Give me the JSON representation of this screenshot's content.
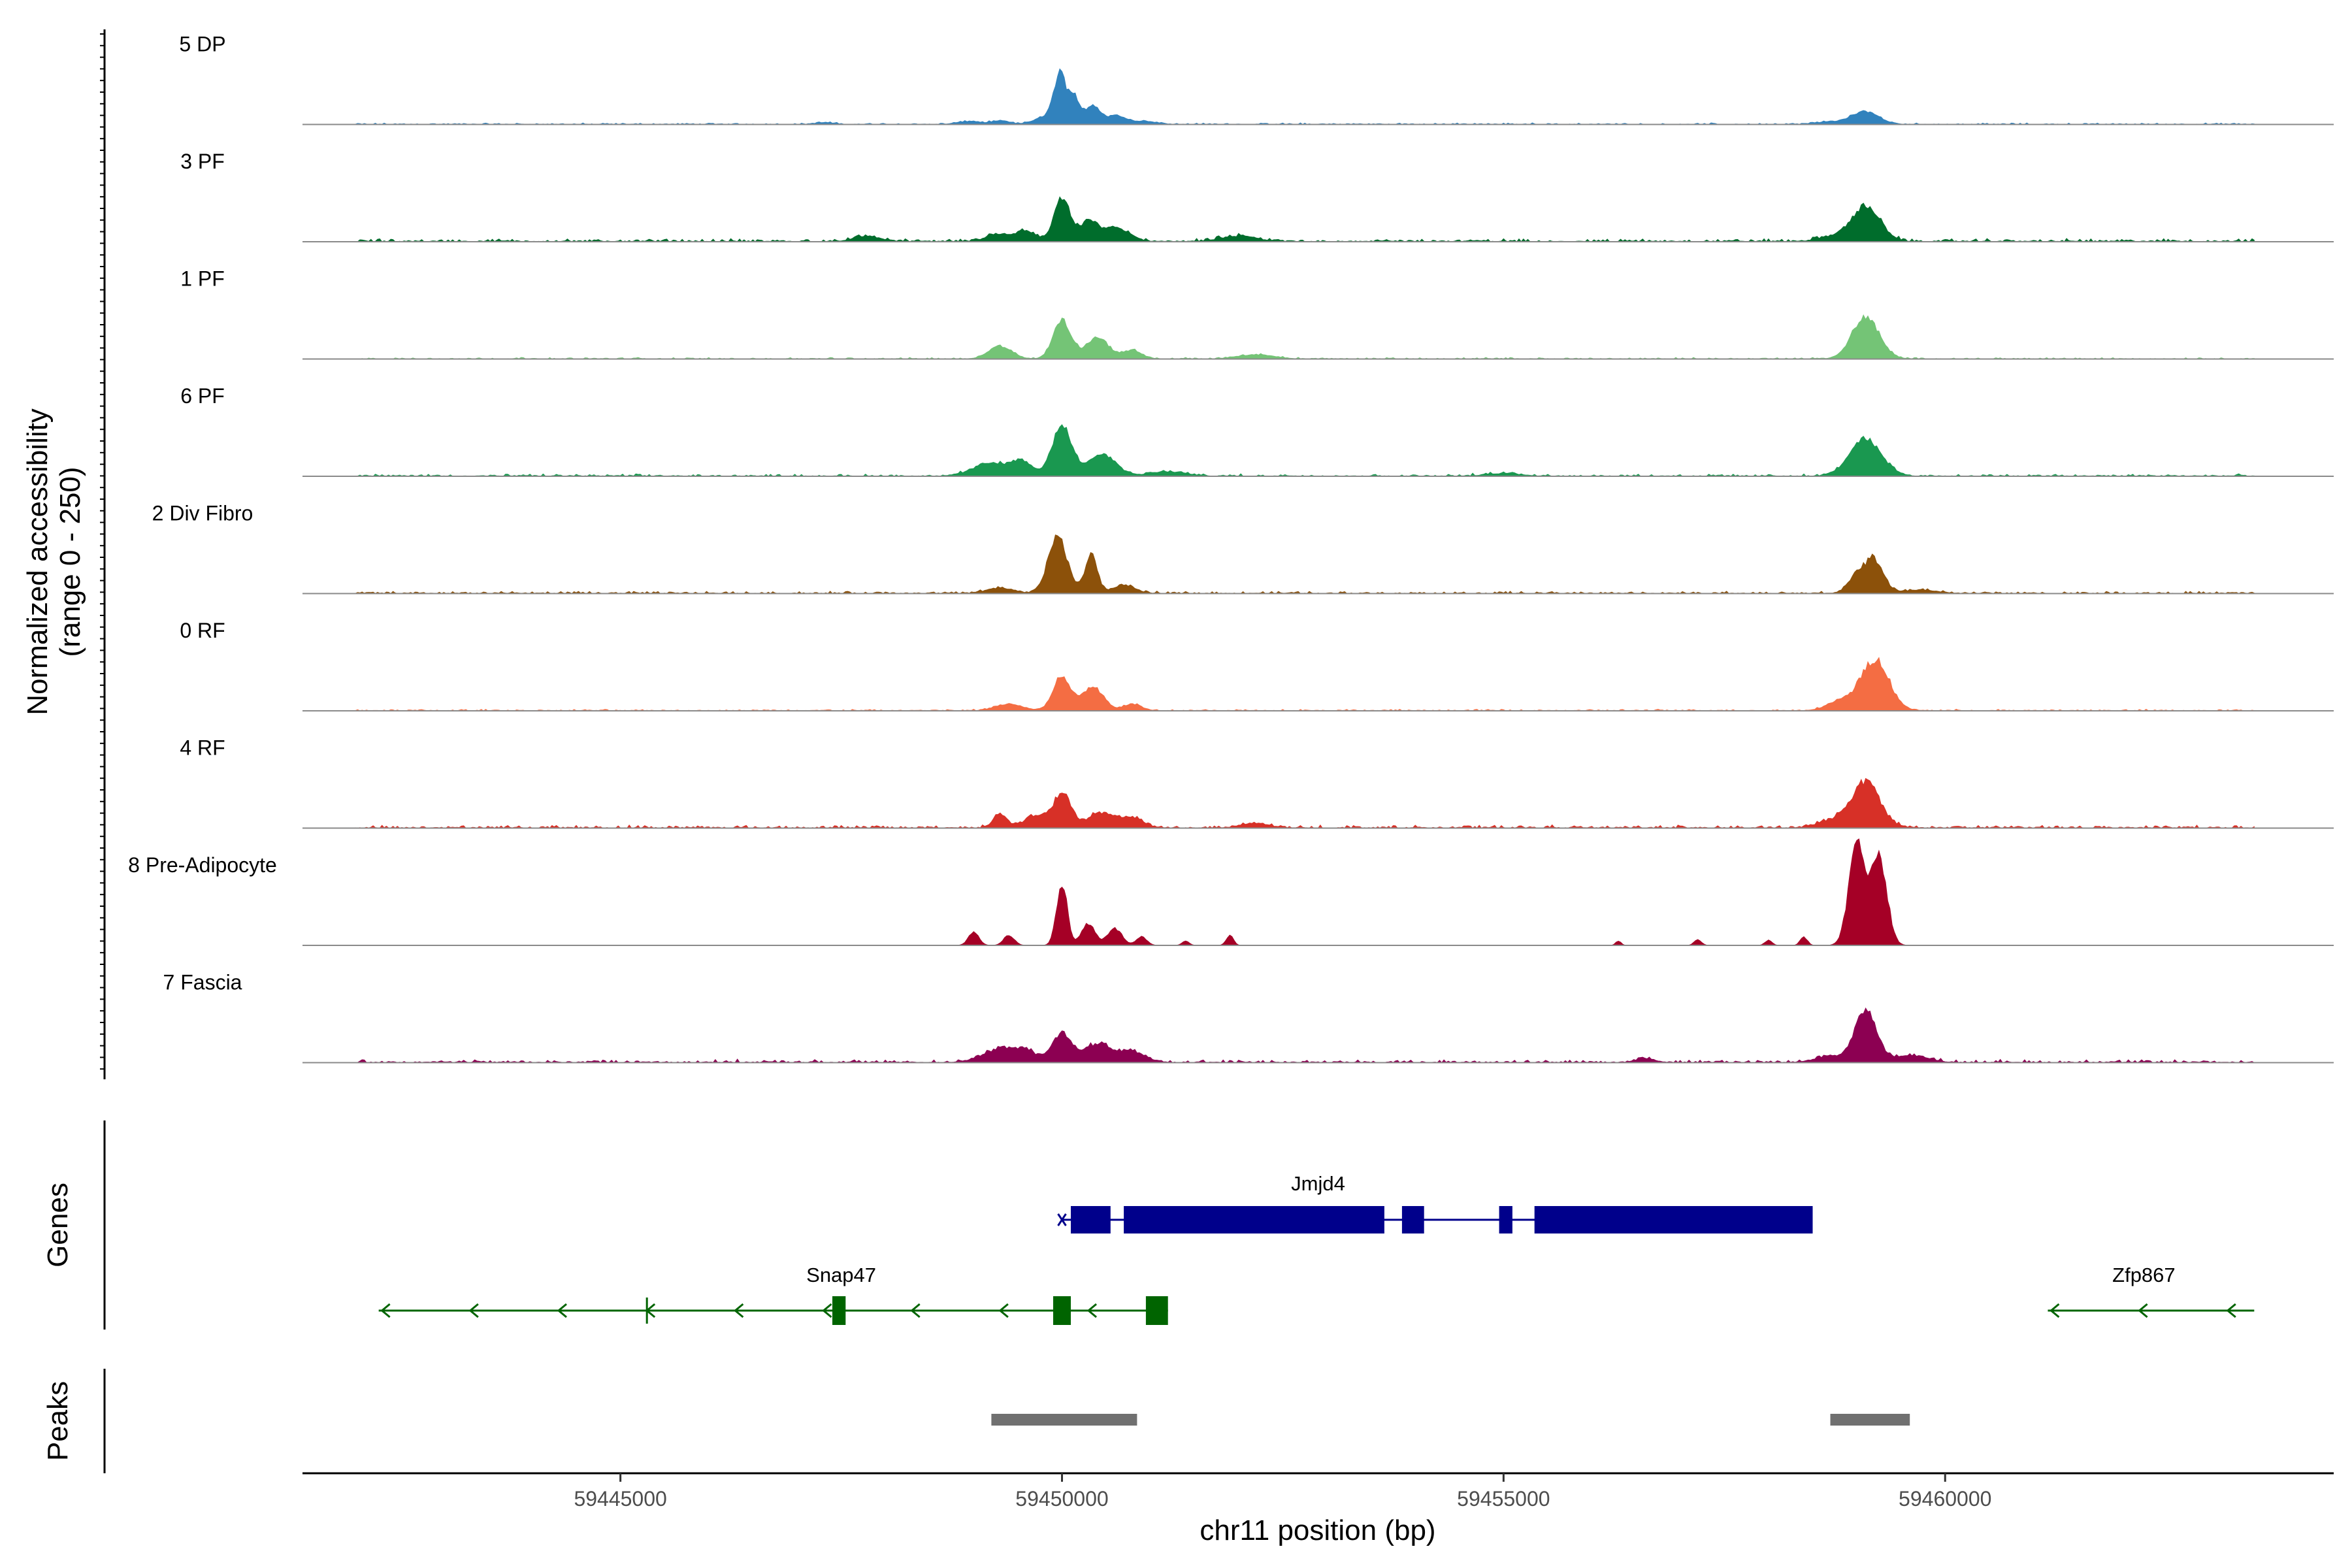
{
  "chart_data": {
    "type": "area",
    "title": "",
    "xlabel": "chr11 position (bp)",
    "ylabel_line1": "Normalized accessibility",
    "ylabel_line2": "(range 0 - 250)",
    "xlim": [
      59441400,
      59464400
    ],
    "ylim": [
      0,
      250
    ],
    "x_ticks": [
      59445000,
      59450000,
      59455000,
      59460000
    ],
    "tick_labels": [
      "59445000",
      "59450000",
      "59455000",
      "59460000"
    ],
    "tracks": [
      {
        "name": "5 DP",
        "color": "#3182bd",
        "noise": 2,
        "peaks": [
          [
            59447300,
            2,
            100
          ],
          [
            59448900,
            2,
            120
          ],
          [
            59449000,
            2,
            100
          ],
          [
            59449300,
            4,
            100
          ],
          [
            59449800,
            8,
            120
          ],
          [
            59449980,
            60,
            70
          ],
          [
            59450150,
            30,
            60
          ],
          [
            59450350,
            22,
            80
          ],
          [
            59450600,
            10,
            100
          ],
          [
            59450900,
            4,
            150
          ],
          [
            59458700,
            3,
            150
          ],
          [
            59459100,
            15,
            150
          ]
        ]
      },
      {
        "name": "3 PF",
        "color": "#006d2c",
        "noise": 4,
        "peaks": [
          [
            59447800,
            6,
            150
          ],
          [
            59449300,
            8,
            150
          ],
          [
            59449600,
            12,
            100
          ],
          [
            59450000,
            50,
            90
          ],
          [
            59450300,
            22,
            100
          ],
          [
            59450600,
            16,
            150
          ],
          [
            59452000,
            6,
            200
          ],
          [
            59458700,
            5,
            150
          ],
          [
            59459100,
            42,
            160
          ]
        ]
      },
      {
        "name": "1 PF",
        "color": "#74c476",
        "noise": 2,
        "peaks": [
          [
            59449300,
            15,
            130
          ],
          [
            59450000,
            45,
            100
          ],
          [
            59450400,
            25,
            130
          ],
          [
            59450800,
            10,
            100
          ],
          [
            59452200,
            5,
            200
          ],
          [
            59459100,
            50,
            150
          ]
        ]
      },
      {
        "name": "6 PF",
        "color": "#1a9850",
        "noise": 3,
        "peaks": [
          [
            59449200,
            15,
            200
          ],
          [
            59449550,
            15,
            120
          ],
          [
            59450000,
            60,
            110
          ],
          [
            59450450,
            25,
            160
          ],
          [
            59451200,
            5,
            200
          ],
          [
            59455000,
            3,
            200
          ],
          [
            59459100,
            43,
            180
          ]
        ]
      },
      {
        "name": "2 Div Fibro",
        "color": "#8c510a",
        "noise": 3,
        "peaks": [
          [
            59449300,
            6,
            150
          ],
          [
            59449950,
            65,
            110
          ],
          [
            59450330,
            45,
            70
          ],
          [
            59450700,
            10,
            120
          ],
          [
            59459000,
            20,
            100
          ],
          [
            59459200,
            38,
            100
          ],
          [
            59459700,
            4,
            200
          ]
        ]
      },
      {
        "name": "0 RF",
        "color": "#f46d43",
        "noise": 2,
        "peaks": [
          [
            59449400,
            8,
            150
          ],
          [
            59450000,
            40,
            100
          ],
          [
            59450350,
            28,
            120
          ],
          [
            59450800,
            8,
            100
          ],
          [
            59458800,
            10,
            150
          ],
          [
            59459200,
            60,
            160
          ]
        ]
      },
      {
        "name": "4 RF",
        "color": "#d73027",
        "noise": 4,
        "peaks": [
          [
            59449300,
            16,
            80
          ],
          [
            59449700,
            14,
            120
          ],
          [
            59450000,
            40,
            100
          ],
          [
            59450450,
            18,
            150
          ],
          [
            59450800,
            12,
            120
          ],
          [
            59452200,
            5,
            150
          ],
          [
            59458700,
            8,
            150
          ],
          [
            59459100,
            55,
            160
          ]
        ]
      },
      {
        "name": "8 Pre-Adipocyte",
        "color": "#a50026",
        "noise": 0,
        "peaks": [
          [
            59449000,
            15,
            60
          ],
          [
            59449400,
            12,
            60
          ],
          [
            59450000,
            75,
            60
          ],
          [
            59450300,
            25,
            80
          ],
          [
            59450600,
            20,
            80
          ],
          [
            59450900,
            10,
            60
          ],
          [
            59451400,
            5,
            40
          ],
          [
            59451900,
            12,
            40
          ],
          [
            59456300,
            5,
            30
          ],
          [
            59457200,
            7,
            40
          ],
          [
            59458000,
            6,
            40
          ],
          [
            59458400,
            10,
            40
          ],
          [
            59459000,
            120,
            90
          ],
          [
            59459250,
            105,
            90
          ]
        ]
      },
      {
        "name": "7 Fascia",
        "color": "#8c0052",
        "noise": 4,
        "peaks": [
          [
            59449300,
            15,
            200
          ],
          [
            59449600,
            10,
            150
          ],
          [
            59450000,
            35,
            100
          ],
          [
            59450400,
            22,
            150
          ],
          [
            59450800,
            12,
            150
          ],
          [
            59456600,
            5,
            100
          ],
          [
            59458700,
            8,
            150
          ],
          [
            59459100,
            62,
            120
          ],
          [
            59459600,
            8,
            200
          ]
        ]
      }
    ],
    "genes": {
      "title": "Genes",
      "jmjd4": {
        "name": "Jmjd4",
        "color": "#00008b",
        "start": 59450000,
        "end": 59458500,
        "exons": [
          [
            59450100,
            59450550
          ],
          [
            59450700,
            59453650
          ],
          [
            59453850,
            59454100
          ],
          [
            59454950,
            59455100
          ],
          [
            59455350,
            59458500
          ]
        ]
      },
      "snap47": {
        "name": "Snap47",
        "color": "#006400",
        "start": 59442300,
        "end": 59451200,
        "exons": [
          [
            59447400,
            59447550
          ],
          [
            59449900,
            59450100
          ],
          [
            59450950,
            59451200
          ]
        ],
        "ticks": [
          59445300
        ],
        "arrows": [
          59442300,
          59443300,
          59444300,
          59445300,
          59446300,
          59447300,
          59448300,
          59449300,
          59450300
        ]
      },
      "zfp867": {
        "name": "Zfp867",
        "color": "#006400",
        "start": 59461200,
        "end": 59463500,
        "arrows": [
          59461200,
          59462200,
          59463200
        ]
      }
    },
    "peaks_track": {
      "title": "Peaks",
      "color": "#707070",
      "regions": [
        [
          59449200,
          59450850
        ],
        [
          59458700,
          59459600
        ]
      ]
    }
  }
}
